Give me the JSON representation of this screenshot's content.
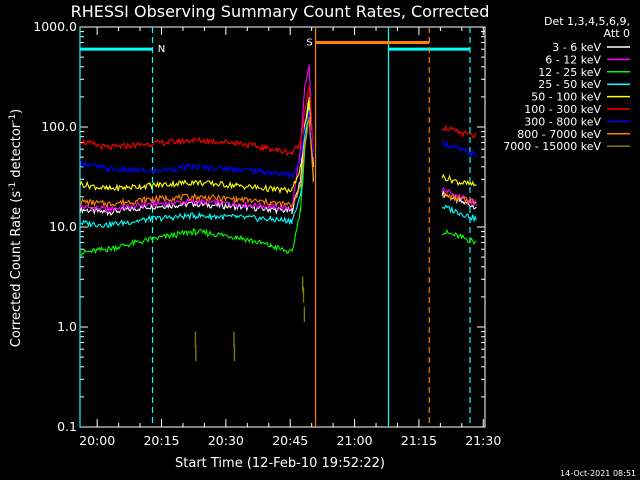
{
  "chart_data": {
    "type": "line",
    "title": "RHESSI Observing Summary Count Rates, Corrected",
    "xlabel": "Start Time (12-Feb-10 19:52:22)",
    "ylabel_main": "Corrected Count Rate (s",
    "ylabel_sup": "-1",
    "ylabel_mid": " detector",
    "ylabel_end": ")",
    "x_unit": "minutes after 19:52:22",
    "xlim": [
      3.6,
      98.0
    ],
    "ylim": [
      0.1,
      1000
    ],
    "yscale": "log",
    "x_ticks": [
      {
        "label": "20:00",
        "x": 7.6
      },
      {
        "label": "20:15",
        "x": 22.6
      },
      {
        "label": "20:30",
        "x": 37.6
      },
      {
        "label": "20:45",
        "x": 52.6
      },
      {
        "label": "21:00",
        "x": 67.6
      },
      {
        "label": "21:15",
        "x": 82.6
      },
      {
        "label": "21:30",
        "x": 97.6
      }
    ],
    "y_ticks": [
      {
        "label": "1000.0",
        "y": 1000
      },
      {
        "label": "100.0",
        "y": 100
      },
      {
        "label": "10.0",
        "y": 10
      },
      {
        "label": "1.0",
        "y": 1
      },
      {
        "label": "0.1",
        "y": 0.1
      }
    ],
    "legend_header": [
      "Det 1,3,4,5,6,9,",
      "Att 0"
    ],
    "legend_position": "right",
    "series": [
      {
        "name": "3 - 6 keV",
        "color": "#ffffff",
        "x": [
          3.6,
          10,
          20,
          30,
          40,
          48,
          53,
          55,
          56,
          57,
          58,
          86,
          88,
          92,
          96
        ],
        "y": [
          15,
          14,
          16,
          17,
          16,
          15,
          14.5,
          30,
          100,
          200,
          30,
          null,
          22,
          18,
          16
        ]
      },
      {
        "name": "6 - 12 keV",
        "color": "#ff00ff",
        "x": [
          3.6,
          10,
          20,
          30,
          40,
          48,
          53,
          55,
          56,
          57,
          58,
          86,
          88,
          92,
          96
        ],
        "y": [
          16,
          15,
          17,
          18,
          17,
          16,
          15.5,
          60,
          250,
          400,
          40,
          null,
          24,
          20,
          17
        ]
      },
      {
        "name": "12 - 25 keV",
        "color": "#00ff00",
        "x": [
          3.6,
          10,
          20,
          30,
          40,
          48,
          53,
          55,
          56,
          57,
          58,
          86,
          88,
          92,
          96
        ],
        "y": [
          5.5,
          6,
          7.5,
          9,
          8,
          6.5,
          5.5,
          15,
          60,
          150,
          30,
          null,
          9,
          8,
          7
        ]
      },
      {
        "name": "25 - 50 keV",
        "color": "#00ffff",
        "x": [
          3.6,
          10,
          20,
          30,
          40,
          48,
          53,
          55,
          56,
          57,
          58,
          86,
          88,
          92,
          96
        ],
        "y": [
          11,
          10.5,
          12,
          13,
          12.5,
          12,
          11.5,
          20,
          80,
          160,
          30,
          null,
          16,
          14,
          12
        ]
      },
      {
        "name": "50 - 100 keV",
        "color": "#ffff00",
        "x": [
          3.6,
          10,
          20,
          30,
          40,
          48,
          53,
          55,
          56,
          57,
          58,
          86,
          88,
          92,
          96
        ],
        "y": [
          27,
          24,
          26,
          28,
          26,
          24,
          23,
          40,
          100,
          180,
          40,
          null,
          32,
          28,
          26
        ]
      },
      {
        "name": "100 - 300 keV",
        "color": "#ff0000",
        "x": [
          3.6,
          10,
          20,
          30,
          40,
          48,
          53,
          55,
          56,
          57,
          58,
          86,
          88,
          92,
          96
        ],
        "y": [
          72,
          62,
          68,
          74,
          70,
          60,
          55,
          70,
          150,
          250,
          60,
          null,
          100,
          88,
          80
        ]
      },
      {
        "name": "300 - 800 keV",
        "color": "#0000ff",
        "x": [
          3.6,
          10,
          20,
          30,
          40,
          48,
          53,
          55,
          56,
          57,
          58,
          86,
          88,
          92,
          96
        ],
        "y": [
          44,
          38,
          36,
          40,
          38,
          35,
          33,
          45,
          100,
          140,
          50,
          null,
          70,
          60,
          52
        ]
      },
      {
        "name": "800 - 7000 keV",
        "color": "#ff8000",
        "x": [
          3.6,
          10,
          20,
          30,
          40,
          48,
          53,
          55,
          56,
          57,
          58,
          86,
          88,
          92,
          96
        ],
        "y": [
          18,
          17,
          19,
          20,
          19,
          17.5,
          16.5,
          25,
          70,
          120,
          30,
          null,
          21,
          19,
          18
        ]
      },
      {
        "name": "7000 - 15000 keV",
        "color": "#808000",
        "x": [
          30.5,
          30.6,
          39.5,
          39.6,
          55.5,
          55.7,
          55.9
        ],
        "y": [
          0.9,
          0.65,
          0.9,
          0.65,
          3.2,
          2.5,
          1.6
        ]
      }
    ],
    "flags": [
      {
        "label": "N",
        "color": "#00ffff",
        "x_start": 3.6,
        "x_end": 20.5,
        "y": 600,
        "dashed_end": true
      },
      {
        "label": "",
        "color": "#00ffff",
        "x_start": 75.5,
        "x_end": 94.5,
        "y": 600,
        "dashed_end": true
      },
      {
        "label": "S",
        "color": "#ff8000",
        "x_start": 58.5,
        "x_end": 85.0,
        "y": 700,
        "dashed_end": true
      }
    ],
    "timestamp": "14-Oct-2021 08:51"
  }
}
